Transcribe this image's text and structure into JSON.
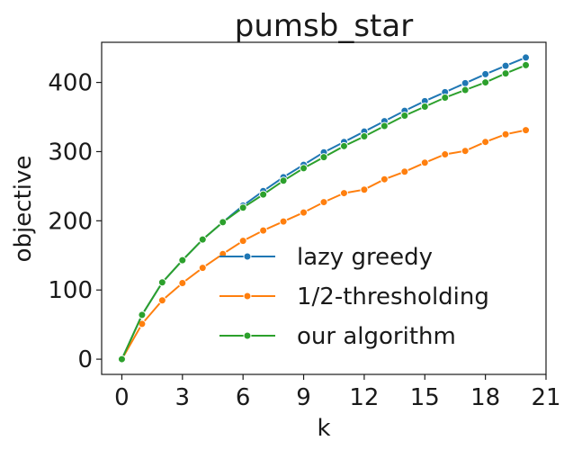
{
  "chart_data": {
    "type": "line",
    "title": "pumsb_star",
    "xlabel": "k",
    "ylabel": "objective",
    "xlim": [
      -1,
      21
    ],
    "ylim": [
      -22,
      458
    ],
    "xticks": [
      0,
      3,
      6,
      9,
      12,
      15,
      18,
      21
    ],
    "yticks": [
      0,
      100,
      200,
      300,
      400
    ],
    "grid": false,
    "legend_position": "lower-right",
    "x": [
      0,
      1,
      2,
      3,
      4,
      5,
      6,
      7,
      8,
      9,
      10,
      11,
      12,
      13,
      14,
      15,
      16,
      17,
      18,
      19,
      20
    ],
    "series": [
      {
        "name": "lazy greedy",
        "color": "#1f77b4",
        "values": [
          0,
          64,
          111,
          143,
          173,
          198,
          222,
          243,
          263,
          281,
          299,
          314,
          329,
          344,
          359,
          373,
          386,
          399,
          412,
          424,
          436
        ]
      },
      {
        "name": "1/2-thresholding",
        "color": "#ff7f0e",
        "values": [
          0,
          51,
          85,
          110,
          132,
          152,
          171,
          186,
          199,
          212,
          227,
          240,
          245,
          260,
          271,
          284,
          296,
          301,
          314,
          325,
          331
        ]
      },
      {
        "name": "our algorithm",
        "color": "#2ca02c",
        "values": [
          0,
          64,
          111,
          143,
          173,
          198,
          219,
          238,
          258,
          276,
          292,
          308,
          322,
          337,
          352,
          365,
          378,
          389,
          400,
          413,
          425
        ]
      }
    ]
  }
}
